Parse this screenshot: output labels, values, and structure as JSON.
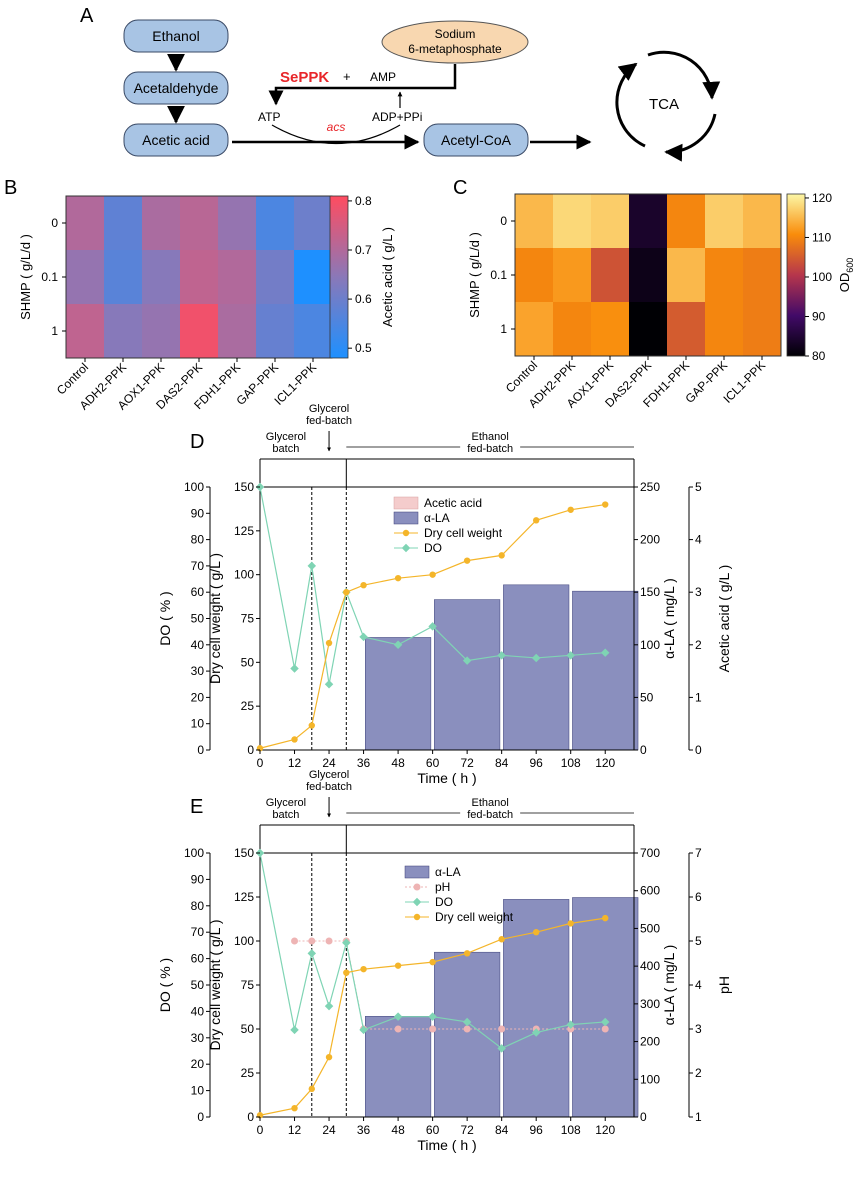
{
  "figure": {
    "panel_a": {
      "label": "A",
      "steps": [
        "Ethanol",
        "Acetaldehyde",
        "Acetic acid"
      ],
      "acetyl_coa": "Acetyl-CoA",
      "sodium_line1": "Sodium",
      "sodium_line2": "6-metaphosphate",
      "enzyme": "SePPK",
      "plus": "+",
      "amp": "AMP",
      "atp": "ATP",
      "adp": "ADP+PPi",
      "acs": "acs",
      "tca": "TCA"
    },
    "colors": {
      "box_fill": "#a8c4e4",
      "box_stroke": "#3a4a66",
      "sodium_fill": "#f8d7b0",
      "enzyme": "#e8262a",
      "bar": "#8a8fbe",
      "bar_pink": "#f4cccc",
      "dcw": "#f4b52a",
      "do": "#7fd4b4",
      "ph": "#eeb4b4"
    }
  },
  "chart_data": [
    {
      "panel": "B",
      "type": "heatmap",
      "rows": [
        "0",
        "0.1",
        "1"
      ],
      "columns": [
        "Control",
        "ADH2-PPK",
        "AOX1-PPK",
        "DAS2-PPK",
        "FDH1-PPK",
        "GAP-PPK",
        "ICL1-PPK"
      ],
      "values": [
        [
          0.7,
          0.58,
          0.69,
          0.71,
          0.66,
          0.55,
          0.6
        ],
        [
          0.66,
          0.57,
          0.64,
          0.72,
          0.7,
          0.61,
          0.48
        ],
        [
          0.72,
          0.64,
          0.66,
          0.79,
          0.69,
          0.59,
          0.55
        ]
      ],
      "ylabel": "SHMP ( g/L/d )",
      "colorbar_label": "Acetic acid ( g/L )",
      "colorbar_ticks": [
        "0.8",
        "0.7",
        "0.6",
        "0.5"
      ],
      "colorbar_range": [
        0.48,
        0.81
      ]
    },
    {
      "panel": "C",
      "type": "heatmap",
      "rows": [
        "0",
        "0.1",
        "1"
      ],
      "columns": [
        "Control",
        "ADH2-PPK",
        "AOX1-PPK",
        "DAS2-PPK",
        "FDH1-PPK",
        "GAP-PPK",
        "ICL1-PPK"
      ],
      "values": [
        [
          115,
          118,
          117,
          84,
          110,
          117,
          115
        ],
        [
          110,
          112,
          104,
          82,
          115,
          110,
          109
        ],
        [
          113,
          110,
          111,
          80,
          105,
          110,
          109
        ]
      ],
      "ylabel": "SHMP ( g/L/d )",
      "colorbar_label": "OD",
      "colorbar_sub": "600",
      "colorbar_ticks": [
        "120",
        "110",
        "100",
        "90",
        "80"
      ],
      "colorbar_range": [
        80,
        121
      ]
    },
    {
      "panel": "D",
      "type": "bar+line",
      "xlabel": "Time ( h )",
      "xlim": [
        0,
        130
      ],
      "xticks": [
        "0",
        "12",
        "24",
        "36",
        "48",
        "60",
        "72",
        "84",
        "96",
        "108",
        "120"
      ],
      "phases": [
        "Glycerol batch",
        "Glycerol fed-batch",
        "Ethanol fed-batch"
      ],
      "phase_lines": [
        18,
        30
      ],
      "yaxes": {
        "do": {
          "label": "DO ( % )",
          "range": [
            0,
            100
          ],
          "ticks": [
            "0",
            "10",
            "20",
            "30",
            "40",
            "50",
            "60",
            "70",
            "80",
            "90",
            "100"
          ]
        },
        "dcw": {
          "label": "Dry cell weight ( g/L )",
          "range": [
            0,
            150
          ],
          "ticks": [
            "0",
            "25",
            "50",
            "75",
            "100",
            "125",
            "150"
          ]
        },
        "la": {
          "label": "α-LA ( mg/L )",
          "range": [
            0,
            250
          ],
          "ticks": [
            "0",
            "50",
            "100",
            "150",
            "200",
            "250"
          ]
        },
        "acetic": {
          "label": "Acetic acid ( g/L )",
          "range": [
            0,
            5
          ],
          "ticks": [
            "0",
            "1",
            "2",
            "3",
            "4",
            "5"
          ]
        }
      },
      "legend": [
        "Acetic acid",
        "α-LA",
        "Dry cell weight",
        "DO"
      ],
      "la_bars": {
        "x": [
          48,
          72,
          96,
          120
        ],
        "values": [
          107,
          143,
          157,
          151
        ]
      },
      "dry_cell_weight": {
        "x": [
          0,
          12,
          18,
          24,
          30,
          36,
          48,
          60,
          72,
          84,
          96,
          108,
          120
        ],
        "values": [
          1,
          6,
          14,
          61,
          90,
          94,
          98,
          100,
          108,
          111,
          131,
          137,
          140
        ]
      },
      "do": {
        "x": [
          0,
          12,
          18,
          24,
          30,
          36,
          48,
          60,
          72,
          84,
          96,
          108,
          120
        ],
        "values": [
          100,
          31,
          70,
          25,
          60,
          43,
          40,
          47,
          34,
          36,
          35,
          36,
          37
        ]
      }
    },
    {
      "panel": "E",
      "type": "bar+line",
      "xlabel": "Time ( h )",
      "xlim": [
        0,
        130
      ],
      "xticks": [
        "0",
        "12",
        "24",
        "36",
        "48",
        "60",
        "72",
        "84",
        "96",
        "108",
        "120"
      ],
      "phases": [
        "Glycerol batch",
        "Glycerol fed-batch",
        "Ethanol fed-batch"
      ],
      "phase_lines": [
        18,
        30
      ],
      "yaxes": {
        "do": {
          "label": "DO ( % )",
          "range": [
            0,
            100
          ],
          "ticks": [
            "0",
            "10",
            "20",
            "30",
            "40",
            "50",
            "60",
            "70",
            "80",
            "90",
            "100"
          ]
        },
        "dcw": {
          "label": "Dry cell weight ( g/L )",
          "range": [
            0,
            150
          ],
          "ticks": [
            "0",
            "25",
            "50",
            "75",
            "100",
            "125",
            "150"
          ]
        },
        "la": {
          "label": "α-LA ( mg/L )",
          "range": [
            0,
            700
          ],
          "ticks": [
            "0",
            "100",
            "200",
            "300",
            "400",
            "500",
            "600",
            "700"
          ]
        },
        "ph": {
          "label": "pH",
          "range": [
            1,
            7
          ],
          "ticks": [
            "1",
            "2",
            "3",
            "4",
            "5",
            "6",
            "7"
          ]
        }
      },
      "legend": [
        "α-LA",
        "pH",
        "DO",
        "Dry cell weight"
      ],
      "la_bars": {
        "x": [
          48,
          72,
          96,
          120
        ],
        "values": [
          267,
          437,
          577,
          582
        ]
      },
      "dry_cell_weight": {
        "x": [
          0,
          12,
          18,
          24,
          30,
          36,
          48,
          60,
          72,
          84,
          96,
          108,
          120
        ],
        "values": [
          1,
          5,
          16,
          34,
          82,
          84,
          86,
          88,
          93,
          101,
          105,
          110,
          113
        ]
      },
      "do": {
        "x": [
          0,
          12,
          18,
          24,
          30,
          36,
          48,
          60,
          72,
          84,
          96,
          108,
          120
        ],
        "values": [
          100,
          33,
          62,
          42,
          66,
          33,
          38,
          38,
          36,
          26,
          32,
          35,
          36
        ]
      },
      "ph": {
        "x": [
          12,
          18,
          24,
          30,
          36,
          48,
          60,
          72,
          84,
          96,
          108,
          120
        ],
        "values": [
          5,
          5,
          5,
          5,
          3,
          3,
          3,
          3,
          3,
          3,
          3,
          3
        ]
      }
    }
  ]
}
